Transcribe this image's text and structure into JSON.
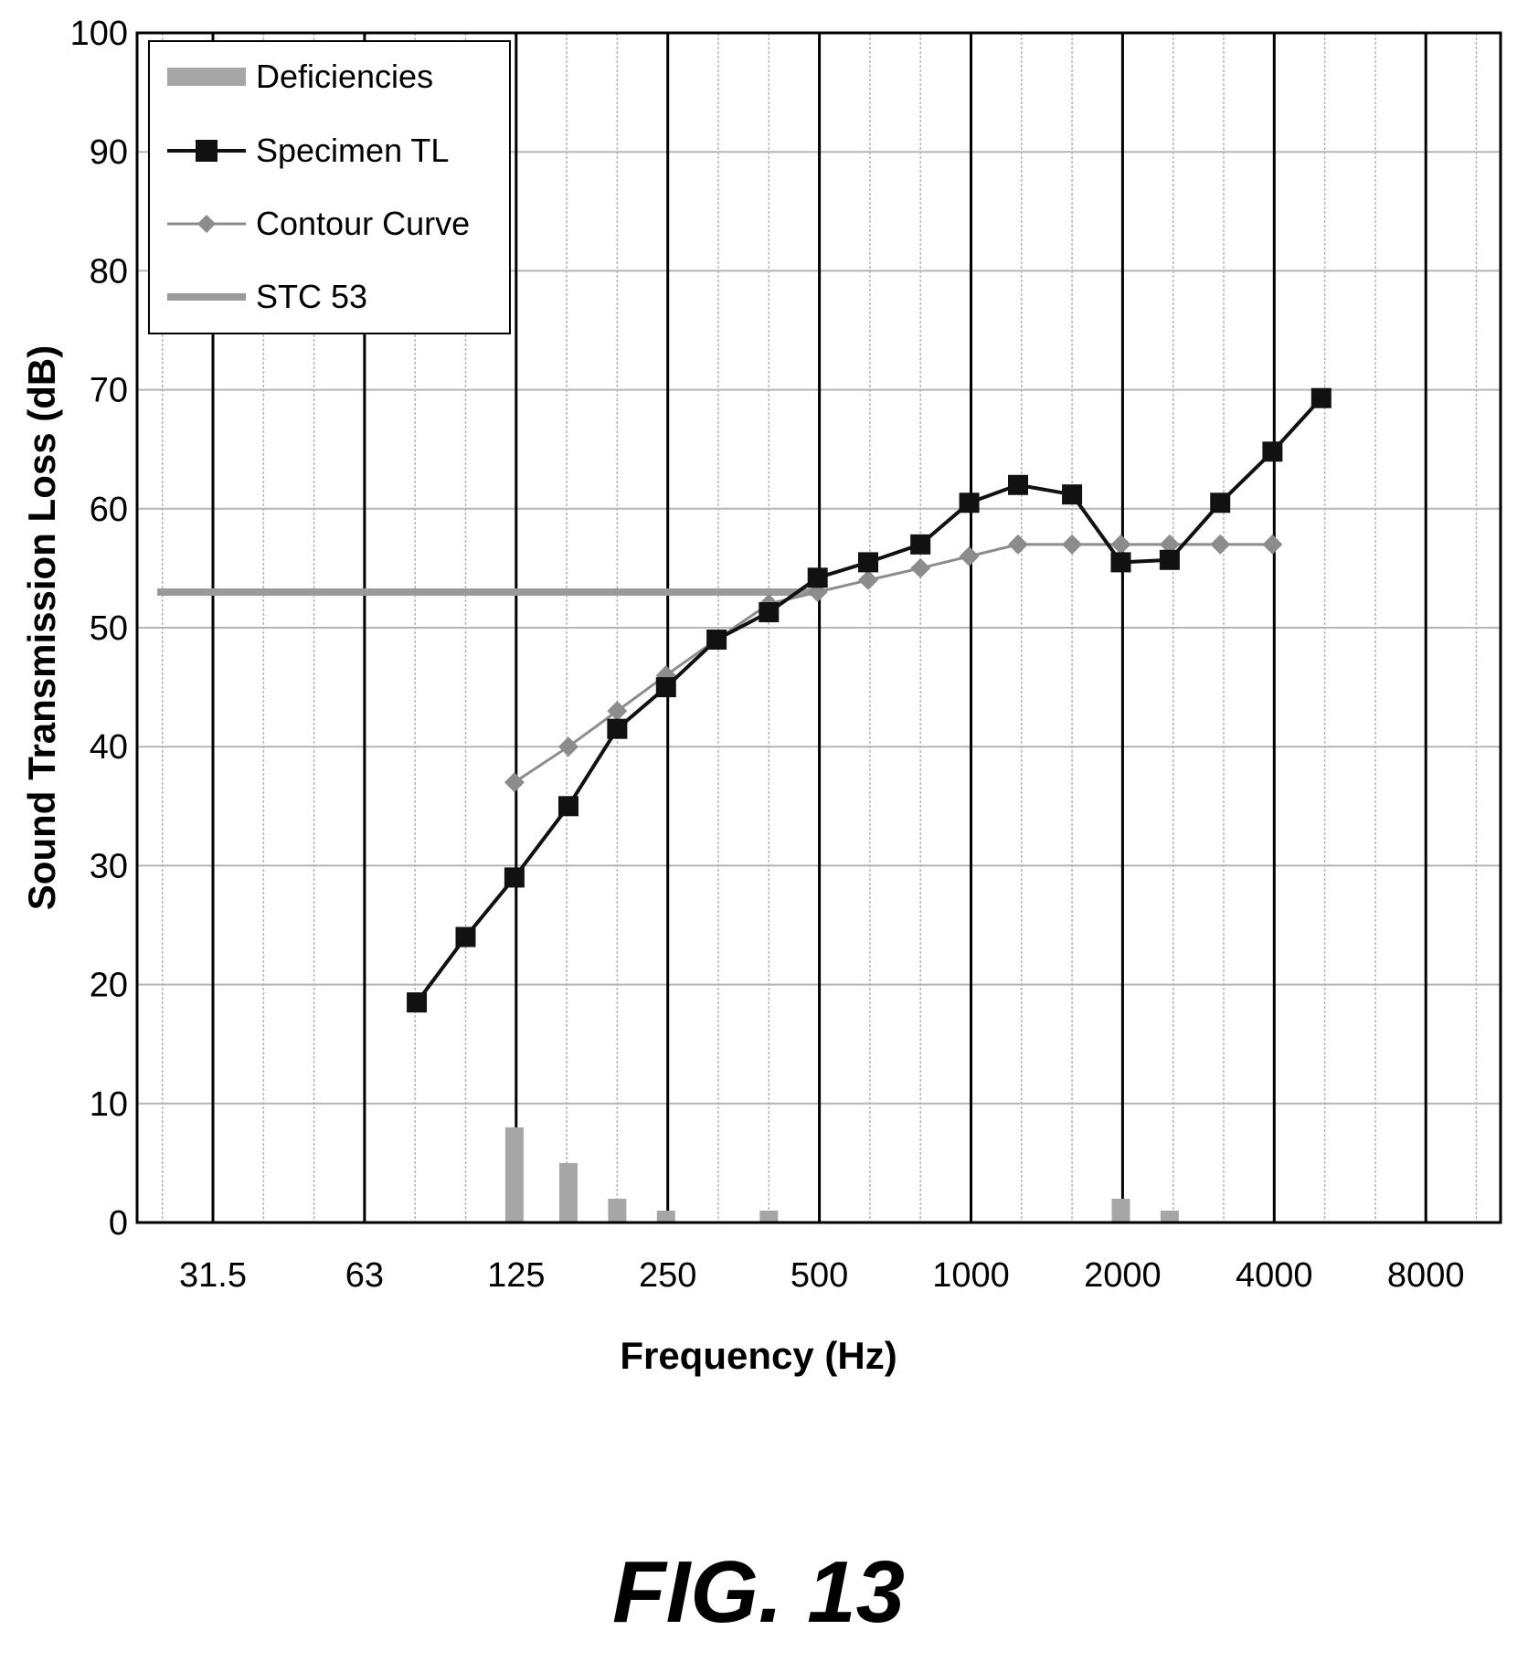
{
  "figure_label": "FIG. 13",
  "colors": {
    "specimen": "#111111",
    "contour": "#8c8c8c",
    "stc": "#9a9a9a",
    "deficiency": "#a6a6a6",
    "grid_minor": "#b5b5b5",
    "grid_major": "#000000"
  },
  "chart_data": {
    "type": "line",
    "xlabel": "Frequency (Hz)",
    "ylabel": "Sound Transmission Loss (dB)",
    "ylim": [
      0,
      100
    ],
    "yticks": [
      "0",
      "10",
      "20",
      "30",
      "40",
      "50",
      "60",
      "70",
      "80",
      "90",
      "100"
    ],
    "xticks": [
      "31.5",
      "63",
      "125",
      "250",
      "500",
      "1000",
      "2000",
      "4000",
      "8000"
    ],
    "x_scale": "log (one-third-octave bands)",
    "grid": true,
    "legend_position": "top-left",
    "legend": [
      "Deficiencies",
      "Specimen TL",
      "Contour Curve",
      "STC 53"
    ],
    "series": [
      {
        "name": "Specimen TL",
        "type": "line",
        "marker": "square",
        "x": [
          80,
          100,
          125,
          160,
          200,
          250,
          315,
          400,
          500,
          630,
          800,
          1000,
          1250,
          1600,
          2000,
          2500,
          3150,
          4000,
          5000
        ],
        "y": [
          18.5,
          24,
          29,
          35,
          41.5,
          45,
          49,
          51.3,
          54.2,
          55.5,
          57,
          60.5,
          62,
          61.2,
          55.5,
          55.7,
          60.5,
          64.8,
          69.3
        ]
      },
      {
        "name": "Contour Curve",
        "type": "line",
        "marker": "diamond",
        "x": [
          125,
          160,
          200,
          250,
          315,
          400,
          500,
          630,
          800,
          1000,
          1250,
          1600,
          2000,
          2500,
          3150,
          4000
        ],
        "y": [
          37,
          40,
          43,
          46,
          49,
          52,
          53,
          54,
          55,
          56,
          57,
          57,
          57,
          57,
          57,
          57
        ]
      },
      {
        "name": "STC 53",
        "type": "line",
        "x": [
          25,
          500
        ],
        "y": [
          53,
          53
        ]
      },
      {
        "name": "Deficiencies",
        "type": "bar",
        "x": [
          125,
          160,
          200,
          250,
          400,
          2000,
          2500
        ],
        "y": [
          8,
          5,
          2,
          1,
          1,
          2,
          1
        ]
      }
    ]
  }
}
